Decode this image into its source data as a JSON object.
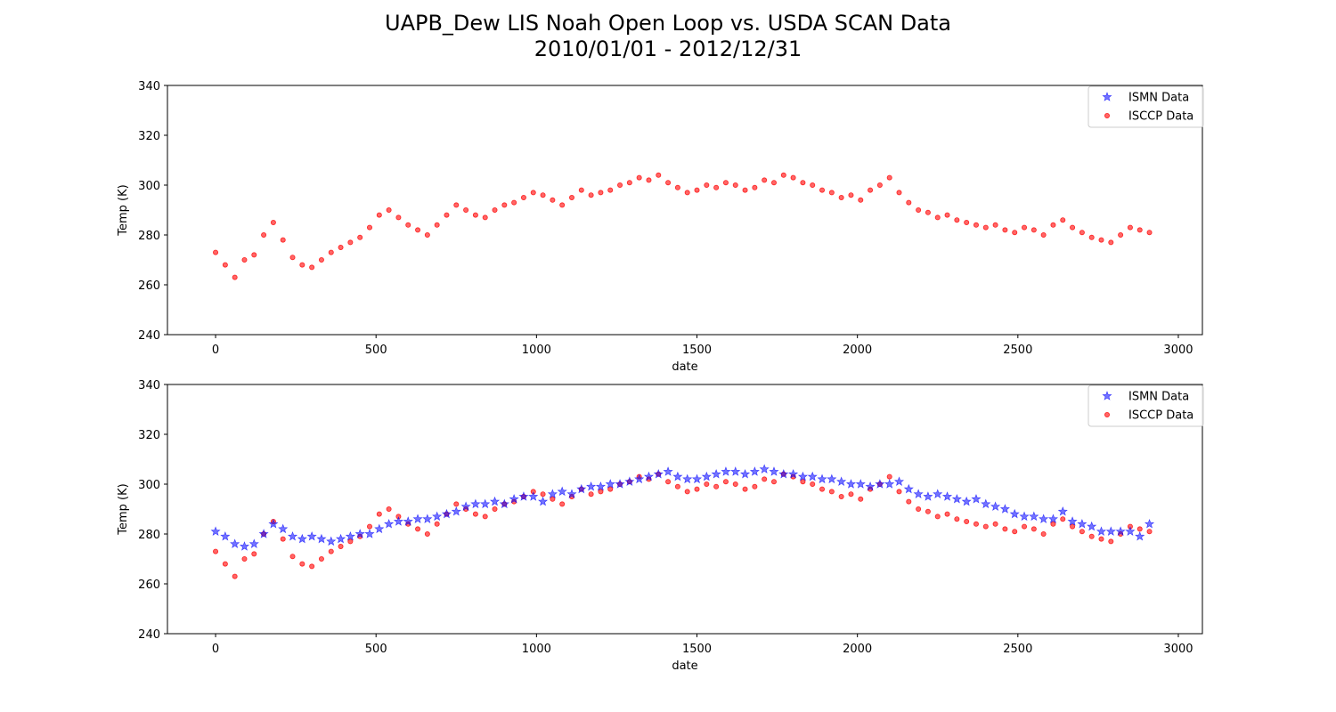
{
  "figure": {
    "title_line1": "UAPB_Dew LIS Noah Open Loop vs. USDA SCAN Data",
    "title_line2": "2010/01/01 - 2012/12/31"
  },
  "colors": {
    "isccp": "#ff0000",
    "ismn": "#0000ff"
  },
  "chart_data": [
    {
      "type": "scatter",
      "xlabel": "date",
      "ylabel": "Temp (K)",
      "xlim": [
        -150,
        3075
      ],
      "ylim": [
        240,
        340
      ],
      "xticks": [
        0,
        500,
        1000,
        1500,
        2000,
        2500,
        3000
      ],
      "yticks": [
        240,
        260,
        280,
        300,
        320,
        340
      ],
      "legend": {
        "placement": "top-right",
        "entries": [
          "ISMN Data",
          "ISCCP Data"
        ]
      },
      "series": [
        {
          "name": "ISMN Data",
          "marker": "star",
          "color": "#0000ff",
          "x": [],
          "y": []
        },
        {
          "name": "ISCCP Data",
          "marker": "circle",
          "color": "#ff0000",
          "x": [
            0,
            30,
            60,
            90,
            120,
            150,
            180,
            210,
            240,
            270,
            300,
            330,
            360,
            390,
            420,
            450,
            480,
            510,
            540,
            570,
            600,
            630,
            660,
            690,
            720,
            750,
            780,
            810,
            840,
            870,
            900,
            930,
            960,
            990,
            1020,
            1050,
            1080,
            1110,
            1140,
            1170,
            1200,
            1230,
            1260,
            1290,
            1320,
            1350,
            1380,
            1410,
            1440,
            1470,
            1500,
            1530,
            1560,
            1590,
            1620,
            1650,
            1680,
            1710,
            1740,
            1770,
            1800,
            1830,
            1860,
            1890,
            1920,
            1950,
            1980,
            2010,
            2040,
            2070,
            2100,
            2130,
            2160,
            2190,
            2220,
            2250,
            2280,
            2310,
            2340,
            2370,
            2400,
            2430,
            2460,
            2490,
            2520,
            2550,
            2580,
            2610,
            2640,
            2670,
            2700,
            2730,
            2760,
            2790,
            2820,
            2850,
            2880,
            2910
          ],
          "y": [
            273,
            268,
            263,
            270,
            272,
            280,
            285,
            278,
            271,
            268,
            267,
            270,
            273,
            275,
            277,
            279,
            283,
            288,
            290,
            287,
            284,
            282,
            280,
            284,
            288,
            292,
            290,
            288,
            287,
            290,
            292,
            293,
            295,
            297,
            296,
            294,
            292,
            295,
            298,
            296,
            297,
            298,
            300,
            301,
            303,
            302,
            304,
            301,
            299,
            297,
            298,
            300,
            299,
            301,
            300,
            298,
            299,
            302,
            301,
            304,
            303,
            301,
            300,
            298,
            297,
            295,
            296,
            294,
            298,
            300,
            303,
            297,
            293,
            290,
            289,
            287,
            288,
            286,
            285,
            284,
            283,
            284,
            282,
            281,
            283,
            282,
            280,
            284,
            286,
            283,
            281,
            279,
            278,
            277,
            280,
            283,
            282,
            281
          ]
        }
      ]
    },
    {
      "type": "scatter",
      "xlabel": "date",
      "ylabel": "Temp (K)",
      "xlim": [
        -150,
        3075
      ],
      "ylim": [
        240,
        340
      ],
      "xticks": [
        0,
        500,
        1000,
        1500,
        2000,
        2500,
        3000
      ],
      "yticks": [
        240,
        260,
        280,
        300,
        320,
        340
      ],
      "legend": {
        "placement": "top-right",
        "entries": [
          "ISMN Data",
          "ISCCP Data"
        ]
      },
      "series": [
        {
          "name": "ISMN Data",
          "marker": "star",
          "color": "#0000ff",
          "x": [
            0,
            30,
            60,
            90,
            120,
            150,
            180,
            210,
            240,
            270,
            300,
            330,
            360,
            390,
            420,
            450,
            480,
            510,
            540,
            570,
            600,
            630,
            660,
            690,
            720,
            750,
            780,
            810,
            840,
            870,
            900,
            930,
            960,
            990,
            1020,
            1050,
            1080,
            1110,
            1140,
            1170,
            1200,
            1230,
            1260,
            1290,
            1320,
            1350,
            1380,
            1410,
            1440,
            1470,
            1500,
            1530,
            1560,
            1590,
            1620,
            1650,
            1680,
            1710,
            1740,
            1770,
            1800,
            1830,
            1860,
            1890,
            1920,
            1950,
            1980,
            2010,
            2040,
            2070,
            2100,
            2130,
            2160,
            2190,
            2220,
            2250,
            2280,
            2310,
            2340,
            2370,
            2400,
            2430,
            2460,
            2490,
            2520,
            2550,
            2580,
            2610,
            2640,
            2670,
            2700,
            2730,
            2760,
            2790,
            2820,
            2850,
            2880,
            2910
          ],
          "y": [
            281,
            279,
            276,
            275,
            276,
            280,
            284,
            282,
            279,
            278,
            279,
            278,
            277,
            278,
            279,
            280,
            280,
            282,
            284,
            285,
            285,
            286,
            286,
            287,
            288,
            289,
            291,
            292,
            292,
            293,
            292,
            294,
            295,
            295,
            293,
            296,
            297,
            296,
            298,
            299,
            299,
            300,
            300,
            301,
            302,
            303,
            304,
            305,
            303,
            302,
            302,
            303,
            304,
            305,
            305,
            304,
            305,
            306,
            305,
            304,
            304,
            303,
            303,
            302,
            302,
            301,
            300,
            300,
            299,
            300,
            300,
            301,
            298,
            296,
            295,
            296,
            295,
            294,
            293,
            294,
            292,
            291,
            290,
            288,
            287,
            287,
            286,
            286,
            289,
            285,
            284,
            283,
            281,
            281,
            281,
            281,
            279,
            284
          ]
        },
        {
          "name": "ISCCP Data",
          "marker": "circle",
          "color": "#ff0000",
          "x": [
            0,
            30,
            60,
            90,
            120,
            150,
            180,
            210,
            240,
            270,
            300,
            330,
            360,
            390,
            420,
            450,
            480,
            510,
            540,
            570,
            600,
            630,
            660,
            690,
            720,
            750,
            780,
            810,
            840,
            870,
            900,
            930,
            960,
            990,
            1020,
            1050,
            1080,
            1110,
            1140,
            1170,
            1200,
            1230,
            1260,
            1290,
            1320,
            1350,
            1380,
            1410,
            1440,
            1470,
            1500,
            1530,
            1560,
            1590,
            1620,
            1650,
            1680,
            1710,
            1740,
            1770,
            1800,
            1830,
            1860,
            1890,
            1920,
            1950,
            1980,
            2010,
            2040,
            2070,
            2100,
            2130,
            2160,
            2190,
            2220,
            2250,
            2280,
            2310,
            2340,
            2370,
            2400,
            2430,
            2460,
            2490,
            2520,
            2550,
            2580,
            2610,
            2640,
            2670,
            2700,
            2730,
            2760,
            2790,
            2820,
            2850,
            2880,
            2910
          ],
          "y": [
            273,
            268,
            263,
            270,
            272,
            280,
            285,
            278,
            271,
            268,
            267,
            270,
            273,
            275,
            277,
            279,
            283,
            288,
            290,
            287,
            284,
            282,
            280,
            284,
            288,
            292,
            290,
            288,
            287,
            290,
            292,
            293,
            295,
            297,
            296,
            294,
            292,
            295,
            298,
            296,
            297,
            298,
            300,
            301,
            303,
            302,
            304,
            301,
            299,
            297,
            298,
            300,
            299,
            301,
            300,
            298,
            299,
            302,
            301,
            304,
            303,
            301,
            300,
            298,
            297,
            295,
            296,
            294,
            298,
            300,
            303,
            297,
            293,
            290,
            289,
            287,
            288,
            286,
            285,
            284,
            283,
            284,
            282,
            281,
            283,
            282,
            280,
            284,
            286,
            283,
            281,
            279,
            278,
            277,
            280,
            283,
            282,
            281
          ]
        }
      ]
    }
  ]
}
